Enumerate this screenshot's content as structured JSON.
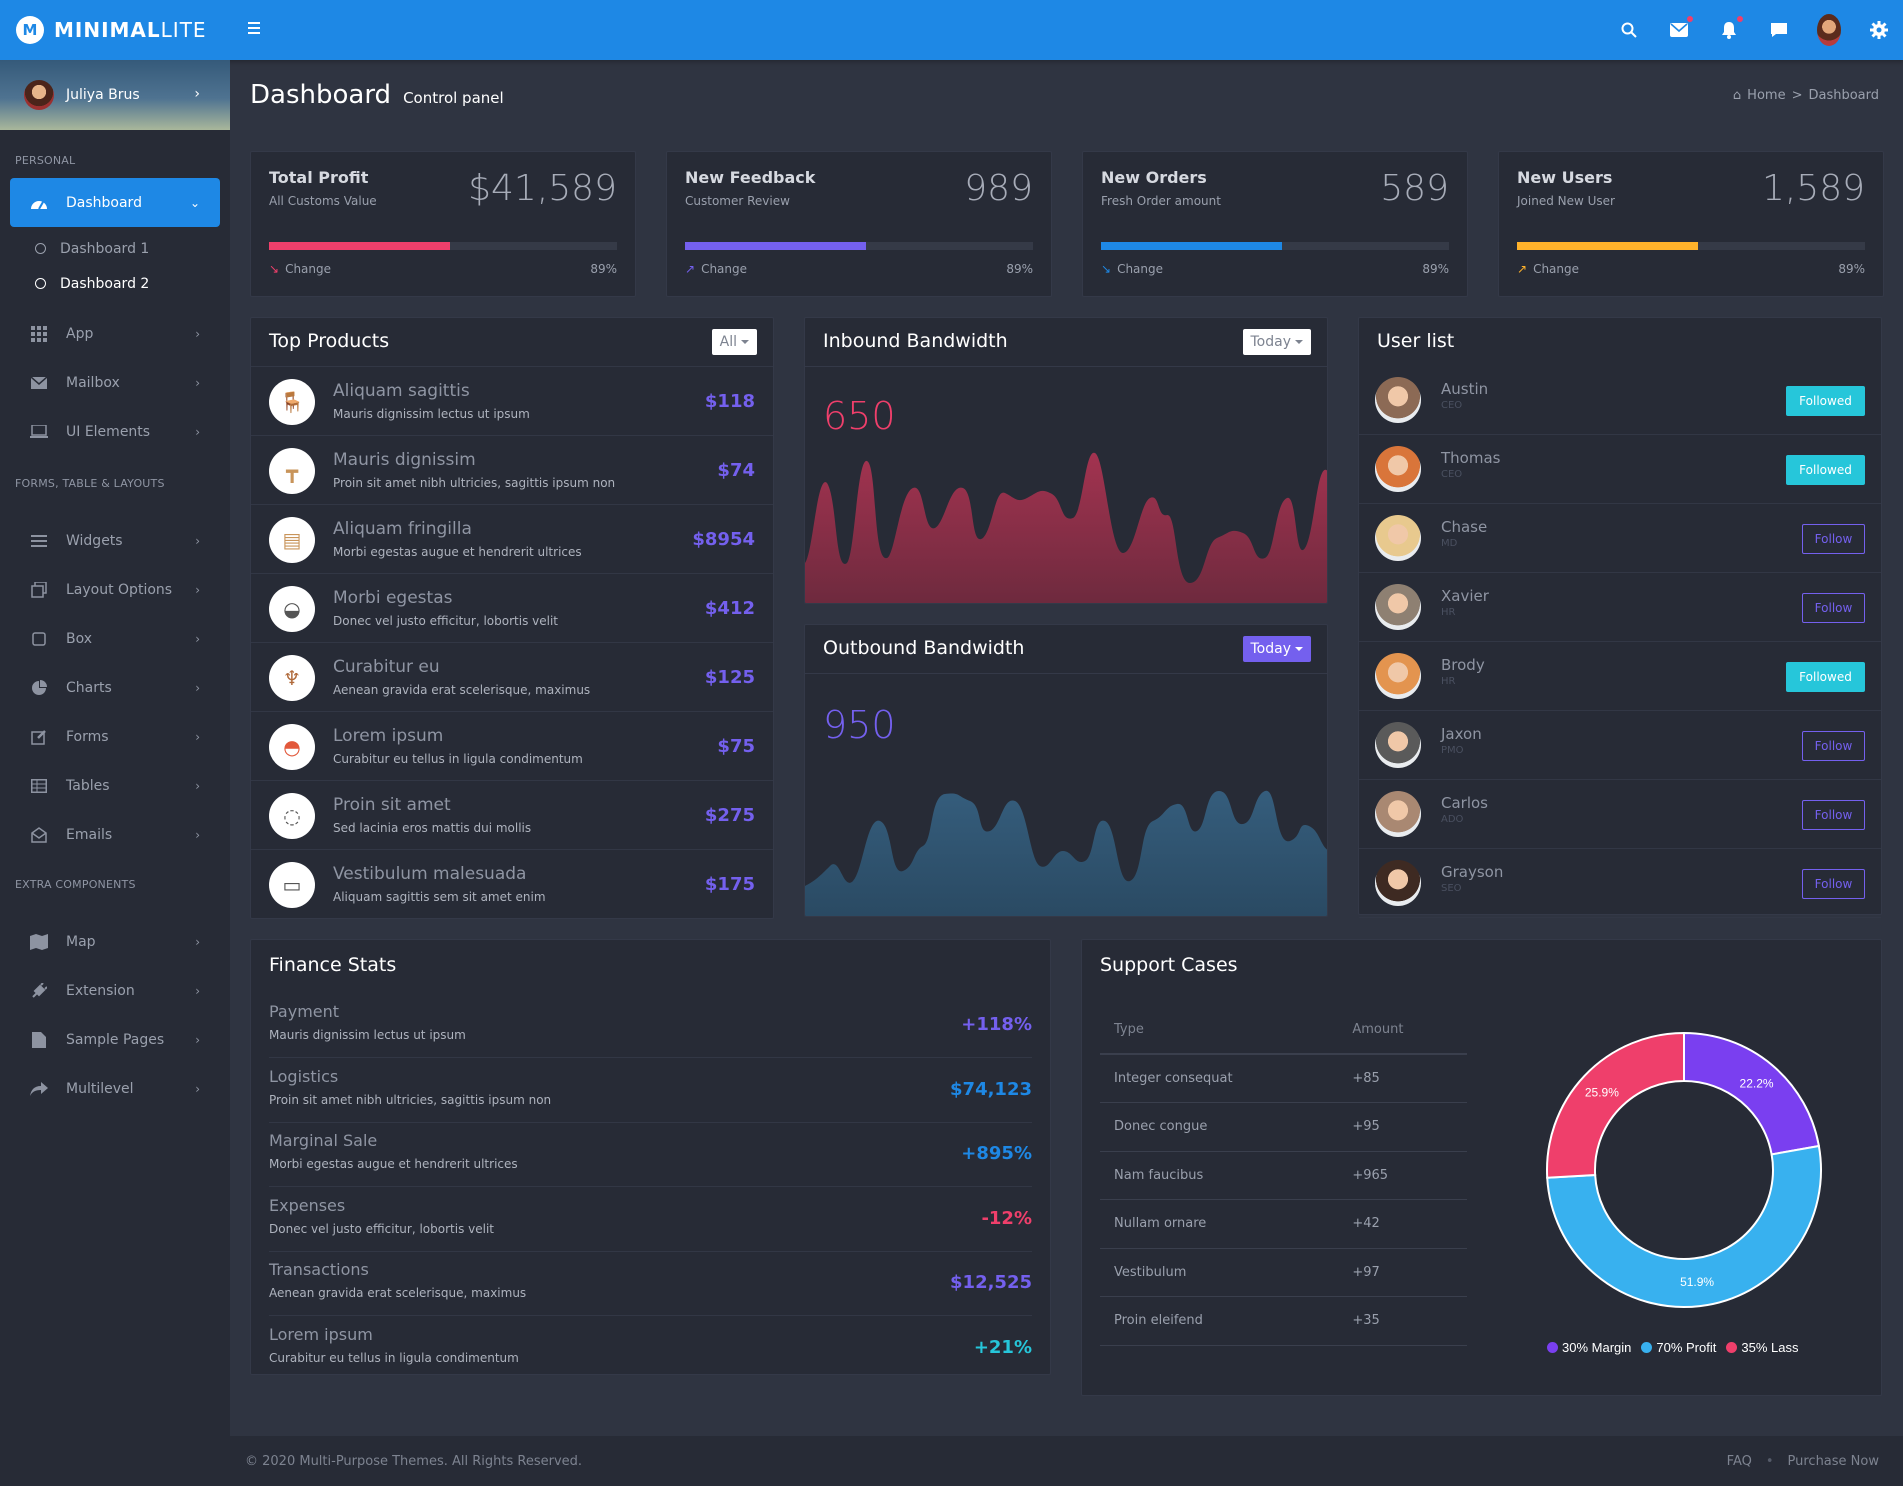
{
  "brand": {
    "name_bold": "MINIMAL",
    "name_light": "LITE"
  },
  "user": {
    "name": "Juliya Brus"
  },
  "sidebar": {
    "sections": [
      "PERSONAL",
      "FORMS, TABLE & LAYOUTS",
      "EXTRA COMPONENTS"
    ],
    "dashboard": "Dashboard",
    "subitems": [
      "Dashboard 1",
      "Dashboard 2"
    ],
    "personal": [
      "App",
      "Mailbox",
      "UI Elements"
    ],
    "forms": [
      "Widgets",
      "Layout Options",
      "Box",
      "Charts",
      "Forms",
      "Tables",
      "Emails"
    ],
    "extra": [
      "Map",
      "Extension",
      "Sample Pages",
      "Multilevel"
    ]
  },
  "header": {
    "title": "Dashboard",
    "subtitle": "Control panel",
    "crumb_home": "Home",
    "crumb_sep": ">",
    "crumb_current": "Dashboard"
  },
  "stats": [
    {
      "title": "Total Profit",
      "sub": "All Customs Value",
      "value": "$41,589",
      "change": "Change",
      "pct": "89%",
      "color": "#ef3f6b",
      "fill": 0.52
    },
    {
      "title": "New Feedback",
      "sub": "Customer Review",
      "value": "989",
      "change": "Change",
      "pct": "89%",
      "color": "#7460ee",
      "fill": 0.52
    },
    {
      "title": "New Orders",
      "sub": "Fresh Order amount",
      "value": "589",
      "change": "Change",
      "pct": "89%",
      "color": "#1e88e5",
      "fill": 0.52
    },
    {
      "title": "New Users",
      "sub": "Joined New User",
      "value": "1,589",
      "change": "Change",
      "pct": "89%",
      "color": "#ffb22b",
      "fill": 0.52
    }
  ],
  "top_products": {
    "title": "Top Products",
    "filter": "All",
    "items": [
      {
        "name": "Aliquam sagittis",
        "desc": "Mauris dignissim lectus ut ipsum",
        "price": "$118",
        "icon": "armchair-icon"
      },
      {
        "name": "Mauris dignissim",
        "desc": "Proin sit amet nibh ultricies, sagittis ipsum non",
        "price": "$74",
        "icon": "table-icon"
      },
      {
        "name": "Aliquam fringilla",
        "desc": "Morbi egestas augue et hendrerit ultrices",
        "price": "$8954",
        "icon": "shelf-icon"
      },
      {
        "name": "Morbi egestas",
        "desc": "Donec vel justo efficitur, lobortis velit",
        "price": "$412",
        "icon": "chair-icon"
      },
      {
        "name": "Curabitur eu",
        "desc": "Aenean gravida erat scelerisque, maximus",
        "price": "$125",
        "icon": "stool-icon"
      },
      {
        "name": "Lorem ipsum",
        "desc": "Curabitur eu tellus in ligula condimentum",
        "price": "$75",
        "icon": "orange-chair-icon"
      },
      {
        "name": "Proin sit amet",
        "desc": "Sed lacinia eros mattis dui mollis",
        "price": "$275",
        "icon": "white-chair-icon"
      },
      {
        "name": "Vestibulum malesuada",
        "desc": "Aliquam sagittis sem sit amet enim",
        "price": "$175",
        "icon": "sofa-icon"
      }
    ]
  },
  "inbound": {
    "title": "Inbound Bandwidth",
    "filter": "Today",
    "value": "650",
    "color": "#ef3f6b"
  },
  "outbound": {
    "title": "Outbound Bandwidth",
    "filter": "Today",
    "value": "950",
    "color": "#7460ee"
  },
  "user_list": {
    "title": "User list",
    "users": [
      {
        "name": "Austin",
        "role": "CEO",
        "action": "Followed",
        "followed": true
      },
      {
        "name": "Thomas",
        "role": "CEO",
        "action": "Followed",
        "followed": true
      },
      {
        "name": "Chase",
        "role": "MD",
        "action": "Follow",
        "followed": false
      },
      {
        "name": "Xavier",
        "role": "HR",
        "action": "Follow",
        "followed": false
      },
      {
        "name": "Brody",
        "role": "HR",
        "action": "Followed",
        "followed": true
      },
      {
        "name": "Jaxon",
        "role": "PMO",
        "action": "Follow",
        "followed": false
      },
      {
        "name": "Carlos",
        "role": "ADO",
        "action": "Follow",
        "followed": false
      },
      {
        "name": "Grayson",
        "role": "SEO",
        "action": "Follow",
        "followed": false
      }
    ]
  },
  "finance": {
    "title": "Finance Stats",
    "items": [
      {
        "name": "Payment",
        "desc": "Mauris dignissim lectus ut ipsum",
        "value": "+118%",
        "color": "#7460ee"
      },
      {
        "name": "Logistics",
        "desc": "Proin sit amet nibh ultricies, sagittis ipsum non",
        "value": "$74,123",
        "color": "#1e88e5"
      },
      {
        "name": "Marginal Sale",
        "desc": "Morbi egestas augue et hendrerit ultrices",
        "value": "+895%",
        "color": "#1e88e5"
      },
      {
        "name": "Expenses",
        "desc": "Donec vel justo efficitur, lobortis velit",
        "value": "-12%",
        "color": "#ef3f6b"
      },
      {
        "name": "Transactions",
        "desc": "Aenean gravida erat scelerisque, maximus",
        "value": "$12,525",
        "color": "#7460ee"
      },
      {
        "name": "Lorem ipsum",
        "desc": "Curabitur eu tellus in ligula condimentum",
        "value": "+21%",
        "color": "#26c6da"
      }
    ]
  },
  "support": {
    "title": "Support Cases",
    "headers": [
      "Type",
      "Amount"
    ],
    "rows": [
      [
        "Integer consequat",
        "+85"
      ],
      [
        "Donec congue",
        "+95"
      ],
      [
        "Nam faucibus",
        "+965"
      ],
      [
        "Nullam ornare",
        "+42"
      ],
      [
        "Vestibulum",
        "+97"
      ],
      [
        "Proin eleifend",
        "+35"
      ]
    ]
  },
  "chart_data": {
    "type": "pie",
    "slices": [
      {
        "label": "22.2%",
        "value": 22.2,
        "color": "#7a3ff0"
      },
      {
        "label": "51.9%",
        "value": 51.9,
        "color": "#38b1ef"
      },
      {
        "label": "25.9%",
        "value": 25.9,
        "color": "#ef3f6b"
      }
    ],
    "legend": [
      {
        "label": "30% Margin",
        "color": "#7a3ff0"
      },
      {
        "label": "70% Profit",
        "color": "#38b1ef"
      },
      {
        "label": "35% Lass",
        "color": "#ef3f6b"
      }
    ]
  },
  "footer": {
    "copyright": "© 2020 Multi-Purpose Themes. All Rights Reserved.",
    "faq": "FAQ",
    "purchase": "Purchase Now"
  }
}
